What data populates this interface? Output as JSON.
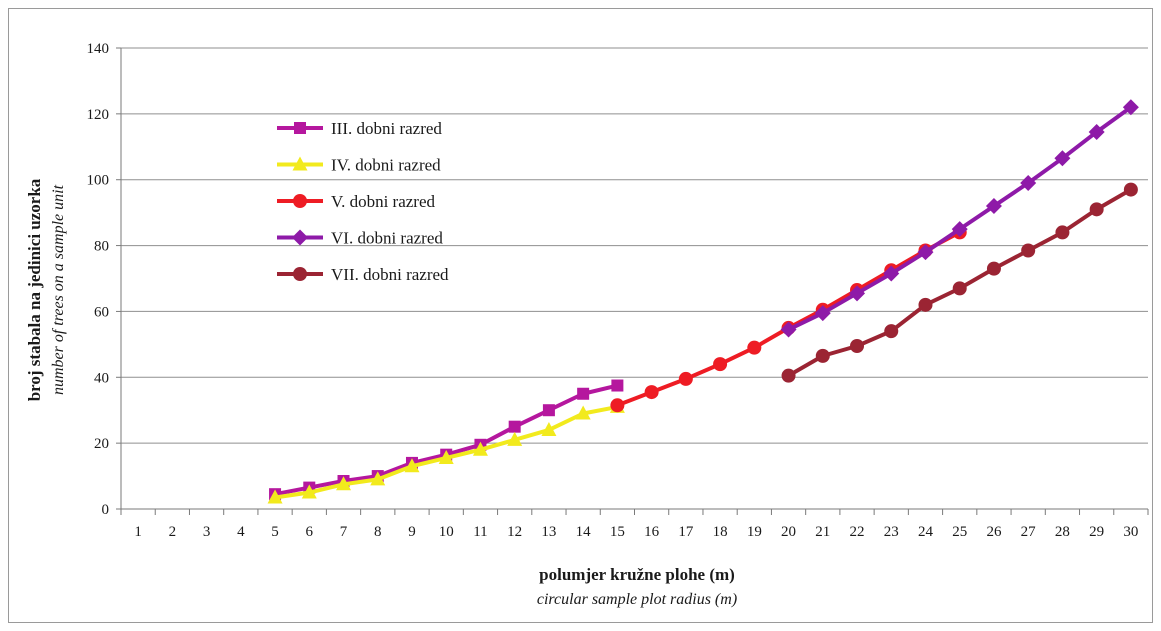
{
  "chart_data": {
    "type": "line",
    "xlabel": "polumjer kružne plohe (m)",
    "xlabel_en": "circular sample plot radius (m)",
    "ylabel": "broj stabala na jedinici uzorka",
    "ylabel_en": "number of trees on a sample unit",
    "categories": [
      1,
      2,
      3,
      4,
      5,
      6,
      7,
      8,
      9,
      10,
      11,
      12,
      13,
      14,
      15,
      16,
      17,
      18,
      19,
      20,
      21,
      22,
      23,
      24,
      25,
      26,
      27,
      28,
      29,
      30
    ],
    "ylim": [
      0,
      140
    ],
    "yticks": [
      0,
      20,
      40,
      60,
      80,
      100,
      120,
      140
    ],
    "grid": true,
    "legend_position": "top-left",
    "series": [
      {
        "name": "III. dobni razred",
        "color": "#b5179e",
        "marker": "square",
        "x": [
          5,
          6,
          7,
          8,
          9,
          10,
          11,
          12,
          13,
          14,
          15
        ],
        "values": [
          4.5,
          6.5,
          8.5,
          10,
          14,
          16.5,
          19.5,
          25,
          30,
          35,
          37.5
        ]
      },
      {
        "name": "IV. dobni razred",
        "color": "#f2ea1d",
        "marker": "triangle",
        "x": [
          5,
          6,
          7,
          8,
          9,
          10,
          11,
          12,
          13,
          14,
          15
        ],
        "values": [
          3.5,
          5,
          7.5,
          9,
          13,
          15.5,
          18,
          21,
          24,
          29,
          31
        ]
      },
      {
        "name": "V. dobni razred",
        "color": "#ee1c24",
        "marker": "circle",
        "x": [
          15,
          16,
          17,
          18,
          19,
          20,
          21,
          22,
          23,
          24,
          25
        ],
        "values": [
          31.5,
          35.5,
          39.5,
          44,
          49,
          55,
          60.5,
          66.5,
          72.5,
          78.5,
          84
        ]
      },
      {
        "name": "VI. dobni razred",
        "color": "#8e1aa8",
        "marker": "diamond",
        "x": [
          20,
          21,
          22,
          23,
          24,
          25,
          26,
          27,
          28,
          29,
          30
        ],
        "values": [
          54.5,
          59.5,
          65.5,
          71.5,
          78,
          85,
          92,
          99,
          106.5,
          114.5,
          122
        ]
      },
      {
        "name": "VII. dobni razred",
        "color": "#9b2433",
        "marker": "circle",
        "x": [
          20,
          21,
          22,
          23,
          24,
          25,
          26,
          27,
          28,
          29,
          30
        ],
        "values": [
          40.5,
          46.5,
          49.5,
          54,
          62,
          67,
          73,
          78.5,
          84,
          91,
          97
        ]
      }
    ]
  }
}
